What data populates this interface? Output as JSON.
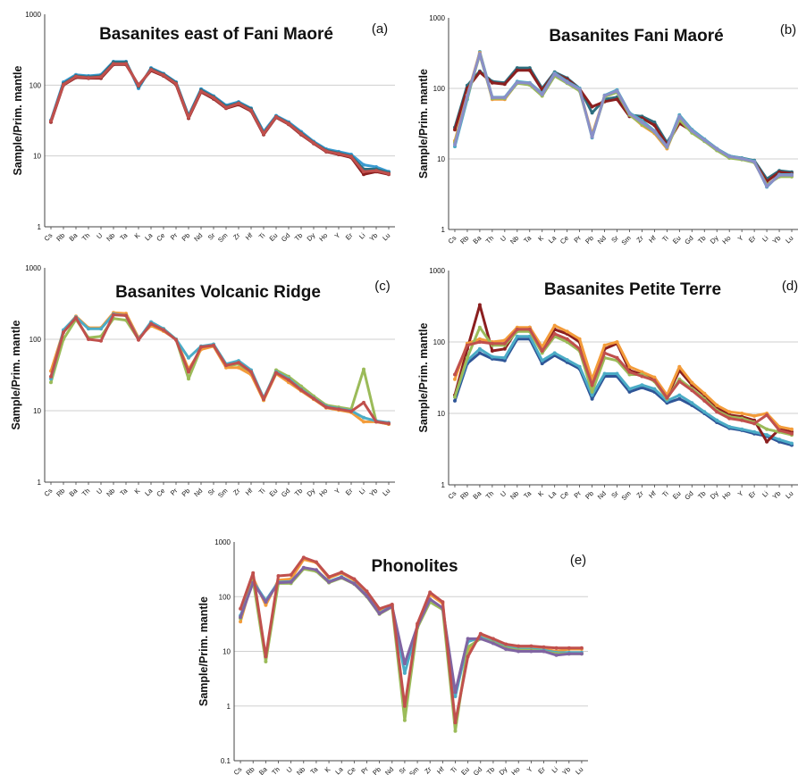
{
  "chart_data": [
    {
      "panel": "(a)",
      "type": "line",
      "title": "Basanites east of Fani Maoré",
      "ylabel": "Sample/Prim. mantle",
      "yscale": "log",
      "ylim": [
        1,
        1000
      ],
      "yticks": [
        "1000",
        "100",
        "10",
        "1"
      ],
      "grid": true,
      "categories": [
        "Cs",
        "Rb",
        "Ba",
        "Th",
        "U",
        "Nb",
        "Ta",
        "K",
        "La",
        "Ce",
        "Pr",
        "Pb",
        "Nd",
        "Sr",
        "Sm",
        "Zr",
        "Hf",
        "Ti",
        "Eu",
        "Gd",
        "Tb",
        "Dy",
        "Ho",
        "Y",
        "Er",
        "Li",
        "Yb",
        "Lu"
      ],
      "series": [
        {
          "color": "#3a9bd1",
          "values": [
            32,
            110,
            140,
            135,
            140,
            215,
            215,
            90,
            175,
            145,
            110,
            37,
            88,
            70,
            52,
            58,
            47,
            22,
            37,
            30,
            22,
            16,
            12.5,
            11.5,
            10.5,
            7.5,
            7,
            6
          ]
        },
        {
          "color": "#2d6e7e",
          "values": [
            31,
            105,
            135,
            130,
            135,
            210,
            210,
            95,
            170,
            142,
            108,
            36,
            85,
            68,
            50,
            56,
            46,
            21,
            36,
            29,
            21,
            15.5,
            12,
            11,
            10,
            6.5,
            6.5,
            5.8
          ]
        },
        {
          "color": "#8b1f1f",
          "values": [
            30,
            100,
            128,
            125,
            125,
            195,
            195,
            100,
            160,
            135,
            102,
            34,
            80,
            64,
            47,
            53,
            43,
            20,
            35,
            28,
            20,
            15,
            11.5,
            10.5,
            9.5,
            5.5,
            6,
            5.5
          ]
        },
        {
          "color": "#c0504d",
          "values": [
            31,
            102,
            132,
            127,
            130,
            200,
            200,
            98,
            165,
            138,
            105,
            35,
            82,
            66,
            48,
            55,
            44,
            20.5,
            35.5,
            28.5,
            20.5,
            15.2,
            11.7,
            10.7,
            9.8,
            6,
            6.2,
            5.6
          ]
        }
      ]
    },
    {
      "panel": "(b)",
      "type": "line",
      "title": "Basanites Fani Maoré",
      "ylabel": "Sample/Prim. mantle",
      "yscale": "log",
      "ylim": [
        1,
        1000
      ],
      "yticks": [
        "1000",
        "100",
        "10",
        "1"
      ],
      "grid": true,
      "categories": [
        "Cs",
        "Rb",
        "Ba",
        "Th",
        "U",
        "Nb",
        "Ta",
        "K",
        "La",
        "Ce",
        "Pr",
        "Pb",
        "Nd",
        "Sr",
        "Sm",
        "Zr",
        "Hf",
        "Ti",
        "Eu",
        "Gd",
        "Tb",
        "Dy",
        "Ho",
        "Y",
        "Er",
        "Li",
        "Yb",
        "Lu"
      ],
      "series": [
        {
          "color": "#2d6e7e",
          "values": [
            28,
            110,
            175,
            125,
            120,
            195,
            195,
            100,
            170,
            140,
            100,
            45,
            70,
            75,
            42,
            40,
            33,
            17,
            33,
            26,
            19,
            14,
            11,
            10.3,
            9.5,
            5.2,
            6.8,
            6.5
          ]
        },
        {
          "color": "#8b1f1f",
          "values": [
            26,
            100,
            170,
            120,
            115,
            180,
            180,
            95,
            165,
            135,
            98,
            55,
            65,
            70,
            40,
            38,
            30,
            16,
            32,
            25,
            18.5,
            13.5,
            10.5,
            10,
            9.2,
            4.8,
            6.5,
            6.2
          ]
        },
        {
          "color": "#4bacc6",
          "values": [
            15,
            70,
            330,
            75,
            75,
            125,
            120,
            85,
            165,
            125,
            100,
            20,
            80,
            95,
            45,
            35,
            25,
            15,
            42,
            26,
            19,
            14,
            11,
            10.2,
            9.3,
            4,
            6,
            6
          ]
        },
        {
          "color": "#f39c3a",
          "values": [
            18,
            80,
            320,
            70,
            70,
            120,
            115,
            80,
            155,
            120,
            95,
            22,
            78,
            90,
            43,
            30,
            23,
            14,
            38,
            24,
            18,
            13.5,
            10.5,
            10,
            9,
            4.2,
            5.8,
            5.8
          ]
        },
        {
          "color": "#9bbb59",
          "values": [
            17,
            75,
            300,
            72,
            72,
            118,
            112,
            78,
            150,
            118,
            92,
            21,
            76,
            88,
            42,
            31,
            24,
            14.5,
            36,
            23.5,
            17.8,
            13.2,
            10.3,
            9.8,
            8.9,
            4.3,
            5.6,
            5.6
          ]
        },
        {
          "color": "#8a8fc8",
          "values": [
            16,
            78,
            310,
            74,
            74,
            122,
            118,
            82,
            160,
            122,
            97,
            20.5,
            79,
            92,
            44,
            33,
            24.5,
            14.8,
            40,
            25,
            18.5,
            13.8,
            10.8,
            10.1,
            9.1,
            4.1,
            5.9,
            5.9
          ]
        }
      ]
    },
    {
      "panel": "(c)",
      "type": "line",
      "title": "Basanites Volcanic Ridge",
      "ylabel": "Sample/Prim. mantle",
      "yscale": "log",
      "ylim": [
        1,
        1000
      ],
      "yticks": [
        "1000",
        "100",
        "10",
        "1"
      ],
      "grid": true,
      "categories": [
        "Cs",
        "Rb",
        "Ba",
        "Th",
        "U",
        "Nb",
        "Ta",
        "K",
        "La",
        "Ce",
        "Pr",
        "Pb",
        "Nd",
        "Sr",
        "Sm",
        "Zr",
        "Hf",
        "Ti",
        "Eu",
        "Gd",
        "Tb",
        "Dy",
        "Ho",
        "Y",
        "Er",
        "Li",
        "Yb",
        "Lu"
      ],
      "series": [
        {
          "color": "#9bbb59",
          "values": [
            25,
            100,
            190,
            105,
            110,
            195,
            185,
            100,
            170,
            140,
            100,
            28,
            75,
            85,
            42,
            45,
            33,
            14,
            37,
            30,
            22,
            16,
            12,
            11.2,
            10.5,
            38,
            7,
            6.5
          ]
        },
        {
          "color": "#f39c3a",
          "values": [
            36,
            130,
            210,
            145,
            145,
            235,
            230,
            105,
            155,
            130,
            100,
            38,
            72,
            80,
            40,
            40,
            32,
            14,
            33,
            25,
            19,
            14.5,
            11,
            10.2,
            9.5,
            7,
            7,
            6.5
          ]
        },
        {
          "color": "#4bacc6",
          "values": [
            28,
            135,
            205,
            140,
            140,
            225,
            215,
            100,
            175,
            140,
            100,
            55,
            80,
            85,
            45,
            50,
            37,
            15,
            35,
            28,
            20,
            15,
            11.5,
            10.7,
            10,
            8,
            7.2,
            6.8
          ]
        },
        {
          "color": "#c0504d",
          "values": [
            30,
            125,
            200,
            100,
            95,
            220,
            215,
            98,
            165,
            135,
            98,
            35,
            78,
            82,
            43,
            47,
            35,
            14.5,
            34,
            27,
            19.5,
            14.8,
            11.2,
            10.5,
            9.8,
            13,
            7,
            6.6
          ]
        }
      ]
    },
    {
      "panel": "(d)",
      "type": "line",
      "title": "Basanites Petite Terre",
      "ylabel": "Sample/Prim. mantle",
      "yscale": "log",
      "ylim": [
        1,
        1000
      ],
      "yticks": [
        "1000",
        "100",
        "10",
        "1"
      ],
      "grid": true,
      "categories": [
        "Cs",
        "Rb",
        "Ba",
        "Th",
        "U",
        "Nb",
        "Ta",
        "K",
        "La",
        "Ce",
        "Pr",
        "Pb",
        "Nd",
        "Sr",
        "Sm",
        "Zr",
        "Hf",
        "Ti",
        "Eu",
        "Gd",
        "Tb",
        "Dy",
        "Ho",
        "Y",
        "Er",
        "Li",
        "Yb",
        "Lu"
      ],
      "series": [
        {
          "color": "#2f5597",
          "values": [
            15,
            50,
            70,
            58,
            55,
            110,
            110,
            50,
            65,
            52,
            42,
            16,
            33,
            33,
            20,
            23,
            20,
            14,
            16,
            13,
            10,
            7.5,
            6.2,
            5.8,
            5.2,
            4.8,
            4,
            3.6
          ]
        },
        {
          "color": "#4bacc6",
          "values": [
            17,
            55,
            80,
            62,
            60,
            120,
            120,
            55,
            70,
            56,
            45,
            18,
            36,
            36,
            22,
            25,
            22,
            15,
            18,
            14,
            10.5,
            8,
            6.5,
            6,
            5.5,
            5,
            4.3,
            3.8
          ]
        },
        {
          "color": "#8b1f1f",
          "values": [
            18,
            80,
            330,
            75,
            80,
            150,
            160,
            80,
            150,
            130,
            100,
            22,
            80,
            95,
            40,
            35,
            30,
            17,
            40,
            25,
            18,
            12,
            9.5,
            9,
            8,
            4,
            6,
            5.5
          ]
        },
        {
          "color": "#f39c3a",
          "values": [
            30,
            95,
            110,
            100,
            105,
            160,
            160,
            85,
            170,
            140,
            110,
            30,
            90,
            100,
            45,
            38,
            32,
            18,
            45,
            27,
            19,
            13,
            10.5,
            10,
            9.2,
            10,
            6.5,
            6
          ]
        },
        {
          "color": "#9bbb59",
          "values": [
            17,
            60,
            160,
            90,
            90,
            140,
            140,
            70,
            120,
            100,
            75,
            20,
            60,
            55,
            35,
            35,
            28,
            16,
            30,
            22,
            16,
            11,
            9,
            8.5,
            7.5,
            6,
            5.5,
            5
          ]
        },
        {
          "color": "#c0504d",
          "values": [
            35,
            90,
            100,
            95,
            95,
            150,
            150,
            75,
            130,
            110,
            80,
            25,
            70,
            60,
            38,
            33,
            29,
            16.5,
            28,
            21,
            15,
            10.5,
            8.5,
            8,
            7.2,
            9.5,
            5.8,
            5.2
          ]
        }
      ]
    },
    {
      "panel": "(e)",
      "type": "line",
      "title": "Phonolites",
      "ylabel": "Sample/Prim. mantle",
      "yscale": "log",
      "ylim": [
        0.1,
        1000
      ],
      "yticks": [
        "1000",
        "100",
        "10",
        "1",
        "0.1"
      ],
      "grid": true,
      "categories": [
        "Cs",
        "Rb",
        "Ba",
        "Th",
        "U",
        "Nb",
        "Ta",
        "K",
        "La",
        "Ce",
        "Pr",
        "Pb",
        "Nd",
        "Sr",
        "Sm",
        "Zr",
        "Hf",
        "Ti",
        "Eu",
        "Gd",
        "Tb",
        "Dy",
        "Ho",
        "Y",
        "Er",
        "Li",
        "Yb",
        "Lu"
      ],
      "series": [
        {
          "color": "#f39c3a",
          "values": [
            35,
            220,
            70,
            200,
            210,
            480,
            420,
            220,
            270,
            200,
            120,
            55,
            70,
            0.8,
            30,
            110,
            75,
            0.45,
            10,
            20,
            16,
            13,
            12,
            12,
            11,
            10,
            11,
            11
          ]
        },
        {
          "color": "#4bacc6",
          "values": [
            45,
            190,
            85,
            185,
            190,
            330,
            300,
            190,
            230,
            175,
            105,
            50,
            68,
            4,
            28,
            85,
            60,
            1.5,
            15,
            18,
            15,
            12,
            11,
            11,
            10.5,
            9.5,
            9.5,
            9.5
          ]
        },
        {
          "color": "#9bbb59",
          "values": [
            40,
            200,
            6.5,
            175,
            175,
            320,
            290,
            180,
            220,
            170,
            100,
            48,
            65,
            0.55,
            27,
            80,
            58,
            0.35,
            12,
            17,
            14.5,
            11.5,
            10.5,
            10.5,
            10,
            9,
            9,
            9
          ]
        },
        {
          "color": "#8064a2",
          "values": [
            42,
            180,
            80,
            180,
            185,
            340,
            310,
            185,
            225,
            172,
            103,
            49,
            66,
            6,
            29,
            90,
            62,
            1.8,
            17,
            17,
            14,
            11,
            10,
            10,
            10,
            8.5,
            9,
            9
          ]
        },
        {
          "color": "#c0504d",
          "values": [
            60,
            270,
            8,
            240,
            250,
            520,
            430,
            230,
            280,
            210,
            125,
            60,
            72,
            1,
            32,
            120,
            80,
            0.5,
            8,
            21,
            17,
            13.5,
            12.5,
            12.5,
            12,
            11.5,
            11.5,
            11.5
          ]
        }
      ]
    }
  ]
}
